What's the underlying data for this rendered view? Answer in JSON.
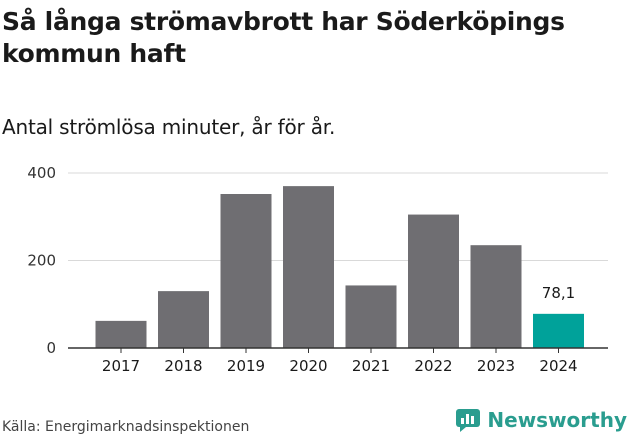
{
  "title": "Så långa strömavbrott har Söderköpings kommun haft",
  "subtitle": "Antal strömlösa minuter, år för år.",
  "source": "Källa: Energimarknadsinspektionen",
  "brand": {
    "name": "Newsworthy",
    "icon": "newsworthy-logo-icon"
  },
  "colors": {
    "bar": "#6f6e72",
    "highlight": "#00a29a",
    "brand": "#2a9d8f",
    "grid": "#d9d9d9",
    "axis": "#333333"
  },
  "chart_data": {
    "type": "bar",
    "categories": [
      "2017",
      "2018",
      "2019",
      "2020",
      "2021",
      "2022",
      "2023",
      "2024"
    ],
    "values": [
      62,
      130,
      352,
      370,
      143,
      305,
      235,
      78.1
    ],
    "data_labels": [
      "",
      "",
      "",
      "",
      "",
      "",
      "",
      "78,1"
    ],
    "highlight_index": 7,
    "ylim": [
      0,
      400
    ],
    "yticks": [
      0,
      200,
      400
    ],
    "grid": true,
    "xlabel": "",
    "ylabel": ""
  }
}
